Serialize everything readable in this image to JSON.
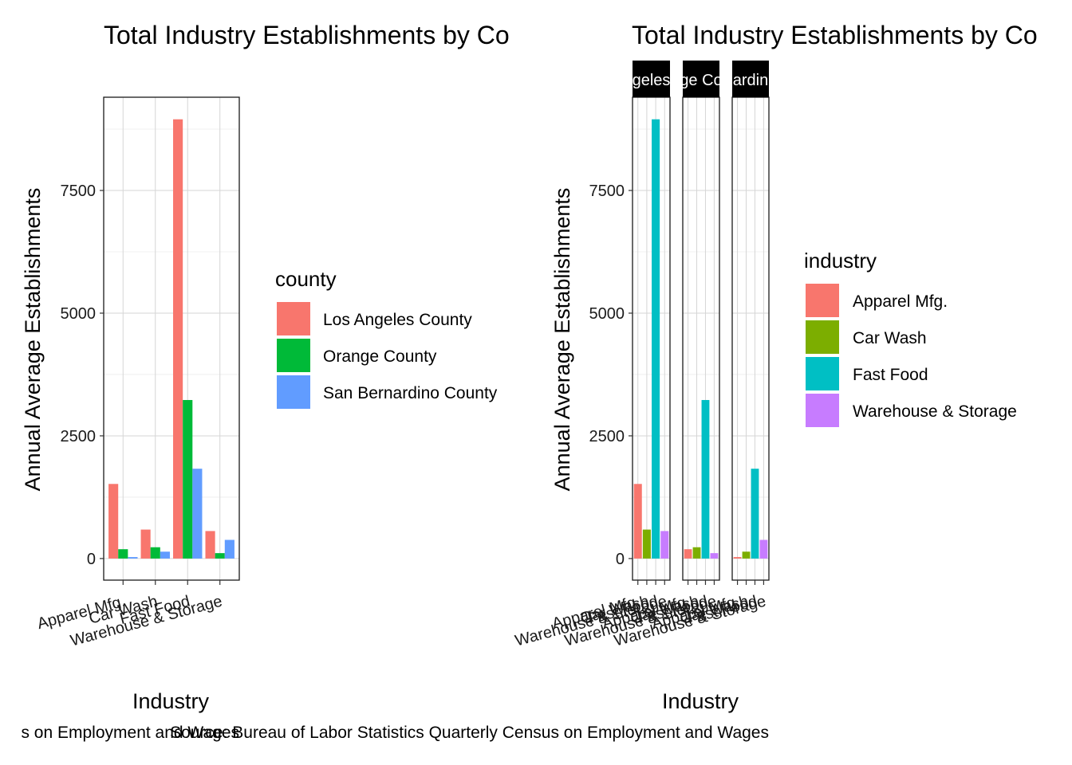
{
  "chart_data": [
    {
      "type": "bar",
      "title": "Total Industry Establishments by Co",
      "xlabel": "Industry",
      "ylabel": "Annual Average Establishments",
      "caption": "s on Employment and Wages",
      "categories": [
        "Apparel Mfg.",
        "Car Wash",
        "Fast Food",
        "Warehouse & Storage"
      ],
      "yticks": [
        0,
        2500,
        5000,
        7500
      ],
      "ylim": [
        -440,
        9400
      ],
      "grid": true,
      "legend": {
        "title": "county",
        "placement": "right"
      },
      "series": [
        {
          "name": "Los Angeles County",
          "color": "#F8766D",
          "values": [
            1520,
            590,
            8950,
            560
          ]
        },
        {
          "name": "Orange County",
          "color": "#00BA38",
          "values": [
            190,
            230,
            3230,
            110
          ]
        },
        {
          "name": "San Bernardino County",
          "color": "#619CFF",
          "values": [
            30,
            140,
            1830,
            380
          ]
        }
      ]
    },
    {
      "type": "bar",
      "title": "Total Industry Establishments by Co",
      "xlabel": "Industry",
      "ylabel": "Annual Average Establishments",
      "caption": "Source: Bureau of Labor Statistics Quarterly Census on Employment and Wages",
      "facet_labels": [
        "geles",
        "ge Co",
        "ardin"
      ],
      "categories": [
        "Apparel Mfg.",
        "Car Wash",
        "Fast Food",
        "Warehouse & Storage"
      ],
      "yticks": [
        0,
        2500,
        5000,
        7500
      ],
      "ylim": [
        -440,
        9400
      ],
      "grid": true,
      "legend": {
        "title": "industry",
        "placement": "right"
      },
      "colors": [
        "#F8766D",
        "#7CAE00",
        "#00BFC4",
        "#C77CFF"
      ],
      "facets": [
        {
          "values": [
            1520,
            590,
            8950,
            560
          ]
        },
        {
          "values": [
            190,
            230,
            3230,
            110
          ]
        },
        {
          "values": [
            30,
            140,
            1830,
            380
          ]
        }
      ]
    }
  ]
}
